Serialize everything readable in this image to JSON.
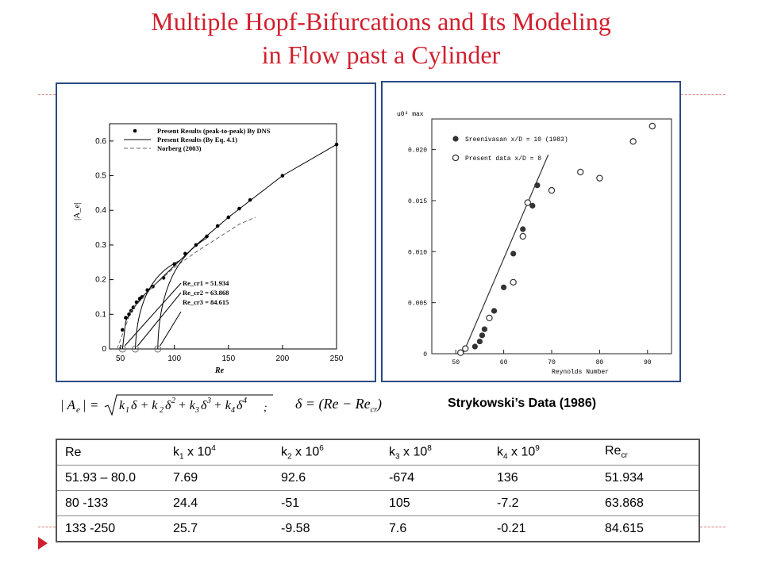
{
  "title_line1": "Multiple Hopf-Bifurcations and Its Modeling",
  "title_line2": "in Flow past a Cylinder",
  "caption": "Strykowski’s Data (1986)",
  "formula_delta": "δ = (Re − Re",
  "formula_delta_sub": "cr",
  "chart_data": [
    {
      "type": "scatter",
      "xlabel": "Re",
      "ylabel": "|A_e|",
      "xlim": [
        40,
        250
      ],
      "ylim": [
        0,
        0.65
      ],
      "xticks": [
        50,
        100,
        150,
        200,
        250
      ],
      "yticks": [
        0,
        0.1,
        0.2,
        0.3,
        0.4,
        0.5,
        0.6
      ],
      "legend": [
        "Present Results (peak-to-peak) By DNS",
        "Present Results (By Eq. 4.1)",
        "Norberg (2003)"
      ],
      "annotations": [
        "Re_cr1 = 51.934",
        "Re_cr2 = 63.868",
        "Re_cr3 = 84.615"
      ],
      "series": [
        {
          "name": "Present Results (peak-to-peak) By DNS",
          "style": "dots",
          "x": [
            52,
            55,
            58,
            60,
            62,
            65,
            68,
            70,
            75,
            80,
            90,
            100,
            110,
            120,
            130,
            140,
            150,
            160,
            170,
            200,
            250
          ],
          "y": [
            0.055,
            0.09,
            0.1,
            0.11,
            0.12,
            0.135,
            0.145,
            0.15,
            0.17,
            0.18,
            0.205,
            0.245,
            0.275,
            0.3,
            0.325,
            0.355,
            0.38,
            0.405,
            0.43,
            0.5,
            0.59
          ]
        },
        {
          "name": "Present Results (By Eq. 4.1)",
          "style": "solid",
          "x": [
            51.934,
            55,
            60,
            65,
            70,
            80,
            90,
            100,
            120,
            150,
            200,
            250
          ],
          "y": [
            0,
            0.08,
            0.11,
            0.13,
            0.15,
            0.18,
            0.21,
            0.24,
            0.3,
            0.38,
            0.5,
            0.59
          ]
        },
        {
          "name": "Norberg (2003)",
          "style": "dashed",
          "x": [
            47,
            60,
            80,
            100,
            120,
            140,
            160,
            175
          ],
          "y": [
            0,
            0.11,
            0.18,
            0.235,
            0.28,
            0.32,
            0.36,
            0.38
          ]
        }
      ]
    },
    {
      "type": "scatter",
      "xlabel": "Reynolds Number",
      "ylabel": "u0² max",
      "xlim": [
        45,
        95
      ],
      "ylim": [
        0,
        0.023
      ],
      "xticks": [
        50,
        60,
        70,
        80,
        90
      ],
      "yticks": [
        0,
        0.005,
        0.01,
        0.015,
        0.02
      ],
      "ytick_labels": [
        "0",
        "0.005",
        "0.010",
        "0.015",
        "0.020"
      ],
      "legend": [
        "Sreenivasan x/D = 10 (1983)",
        "Present data x/D = 8"
      ],
      "series": [
        {
          "name": "Sreenivasan x/D = 10 (1983)",
          "marker": "filled",
          "x": [
            54,
            55,
            55.5,
            56,
            58,
            60,
            62,
            64,
            66,
            67
          ],
          "y": [
            0.0007,
            0.0012,
            0.0018,
            0.0024,
            0.0042,
            0.0065,
            0.0098,
            0.0122,
            0.0145,
            0.0165
          ]
        },
        {
          "name": "Present data x/D = 8",
          "marker": "open",
          "x": [
            51,
            52,
            57,
            62,
            64,
            65,
            70,
            76,
            80,
            87,
            91
          ],
          "y": [
            0.0001,
            0.0005,
            0.0035,
            0.007,
            0.0115,
            0.0148,
            0.016,
            0.0178,
            0.0172,
            0.0208,
            0.0223
          ]
        }
      ]
    }
  ],
  "table": {
    "rows": [
      [
        "Re",
        "k1 x 10^4",
        "k2 x 10^6",
        "k3 x 10^8",
        "k4 x 10^9",
        "Re cr"
      ],
      [
        "51.93 – 80.0",
        "7.69",
        "92.6",
        "-674",
        "136",
        "51.934"
      ],
      [
        "80 -133",
        "24.4",
        "-51",
        "105",
        "-7.2",
        "63.868"
      ],
      [
        "133 -250",
        "25.7",
        "-9.58",
        "7.6",
        "-0.21",
        "84.615"
      ]
    ],
    "header": {
      "c0": "Re",
      "k1": "k",
      "k1_sub": "1",
      "k1_mid": " x 10",
      "k1_sup": "4",
      "k2": "k",
      "k2_sub": "2",
      "k2_mid": " x 10",
      "k2_sup": "6",
      "k3": "k",
      "k3_sub": "3",
      "k3_mid": " x 10",
      "k3_sup": "8",
      "k4": "k",
      "k4_sub": "4",
      "k4_mid": " x 10",
      "k4_sup": "9",
      "recr": "Re",
      "recr_sub": "cr"
    }
  }
}
